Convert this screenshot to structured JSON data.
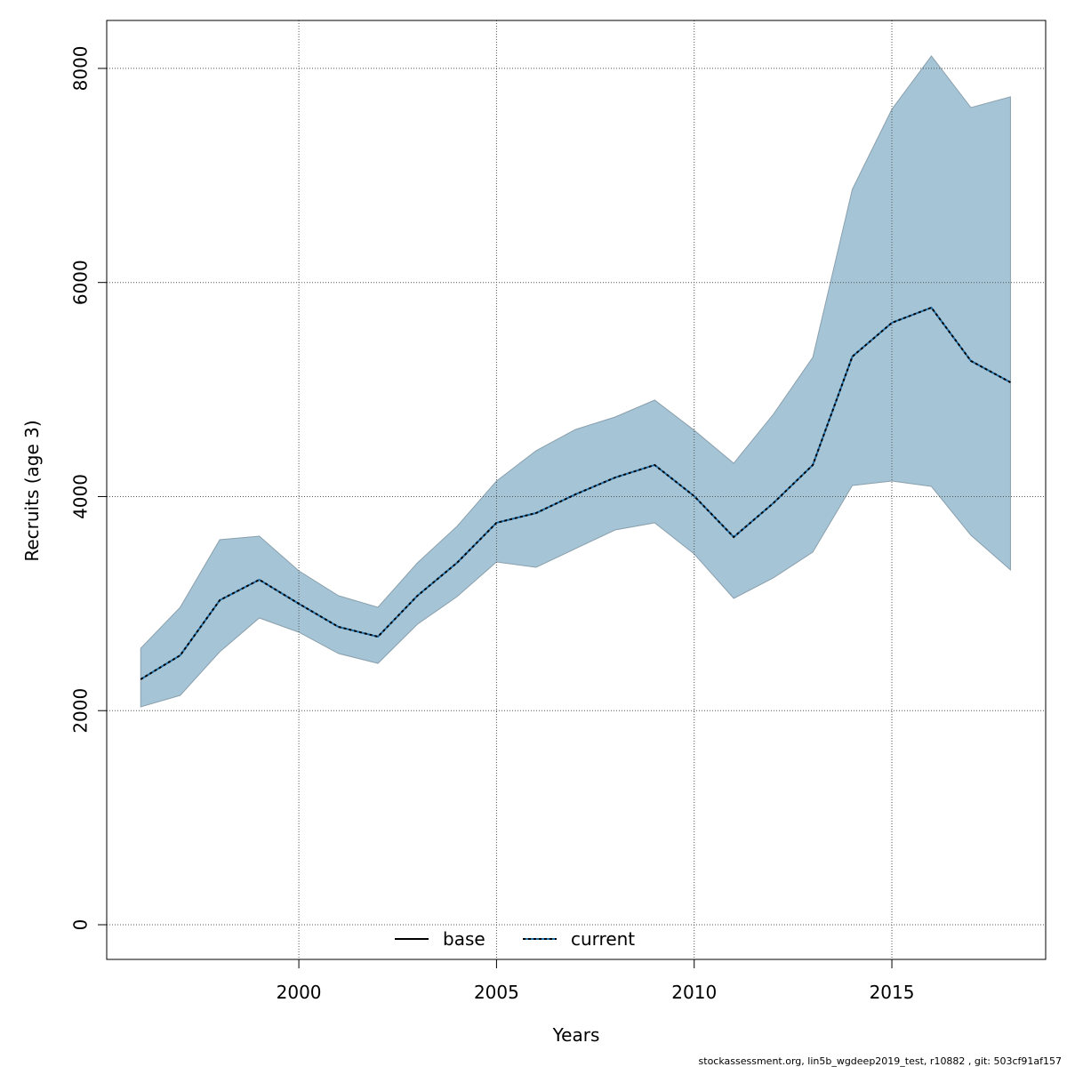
{
  "chart_data": {
    "type": "line",
    "xlabel": "Years",
    "ylabel": "Recruits (age 3)",
    "footnote": "stockassessment.org, lin5b_wgdeep2019_test, r10882 , git: 503cf91af157",
    "x": [
      1996,
      1997,
      1998,
      1999,
      2000,
      2001,
      2002,
      2003,
      2004,
      2005,
      2006,
      2007,
      2008,
      2009,
      2010,
      2011,
      2012,
      2013,
      2014,
      2015,
      2016,
      2017,
      2018
    ],
    "series": [
      {
        "name": "base",
        "color": "#000000",
        "style": "solid",
        "values": [
          null,
          null,
          null,
          null,
          null,
          null,
          null,
          null,
          null,
          null,
          null,
          null,
          null,
          null,
          null,
          null,
          null,
          null,
          null,
          null,
          null,
          null,
          null
        ]
      },
      {
        "name": "current",
        "color": "#000000",
        "style": "dotted",
        "band_color": "#a5c4d6",
        "values": [
          2293,
          2517,
          3032,
          3223,
          2999,
          2783,
          2691,
          3074,
          3381,
          3755,
          3846,
          4021,
          4178,
          4295,
          4004,
          3622,
          3938,
          4295,
          5308,
          5624,
          5765,
          5267,
          5067
        ],
        "lower": [
          2035,
          2143,
          2550,
          2866,
          2733,
          2534,
          2442,
          2808,
          3065,
          3389,
          3339,
          3514,
          3688,
          3755,
          3464,
          3049,
          3240,
          3481,
          4104,
          4145,
          4095,
          3638,
          3315
        ],
        "upper": [
          2583,
          2966,
          3597,
          3630,
          3306,
          3074,
          2966,
          3381,
          3722,
          4145,
          4428,
          4627,
          4743,
          4901,
          4619,
          4311,
          4768,
          5300,
          6870,
          7618,
          8116,
          7634,
          7734
        ]
      }
    ],
    "xlim": [
      1995.14,
      2018.89
    ],
    "ylim": [
      -324,
      8448
    ],
    "xticks": [
      2000,
      2005,
      2010,
      2015
    ],
    "yticks": [
      0,
      2000,
      4000,
      6000,
      8000
    ],
    "grid": true,
    "legend": "bottom"
  }
}
